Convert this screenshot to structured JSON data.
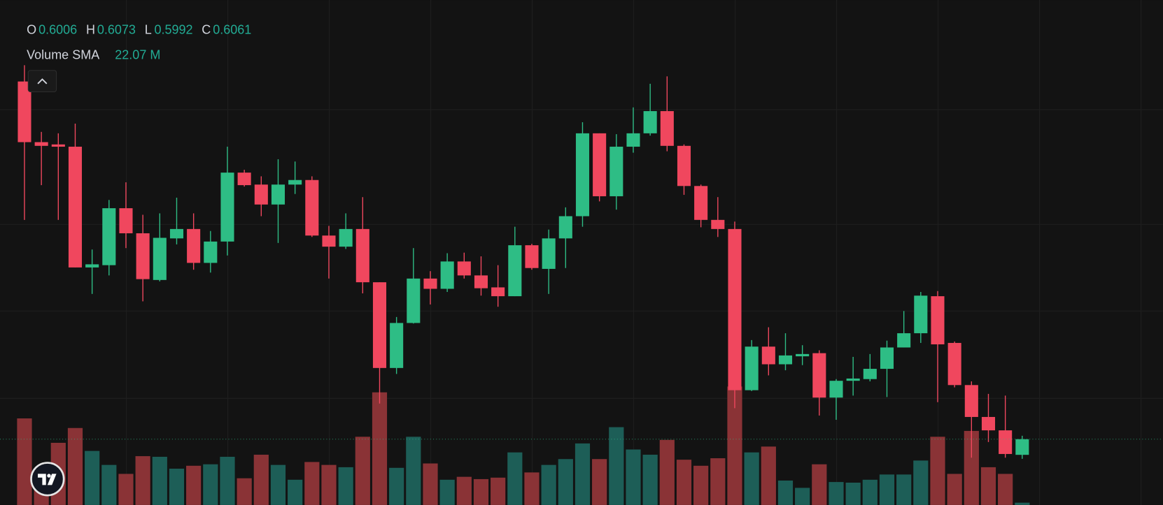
{
  "chart_data": {
    "type": "candlestick",
    "legend": {
      "labels": [
        "O",
        "H",
        "L",
        "C"
      ]
    },
    "volume_sma": {
      "name": "Volume SMA",
      "value": 22.07,
      "label": "22.07 M"
    },
    "up_color": "#2ebd85",
    "down_color": "#f0475e",
    "volume_up_color": "#1d5e57",
    "volume_down_color": "#8a3336",
    "grid": true,
    "ylim": [
      0.583,
      0.7603
    ],
    "volume_lim": [
      0,
      242.1
    ],
    "open": [
      0.7317,
      0.7104,
      0.7096,
      0.7088,
      0.6664,
      0.6672,
      0.6872,
      0.6784,
      0.662,
      0.6766,
      0.6799,
      0.668,
      0.6755,
      0.6997,
      0.6955,
      0.6885,
      0.6955,
      0.6971,
      0.6776,
      0.6737,
      0.6799,
      0.6612,
      0.6311,
      0.6469,
      0.6625,
      0.6589,
      0.6685,
      0.6636,
      0.6594,
      0.6563,
      0.6742,
      0.6659,
      0.6766,
      0.6844,
      0.7135,
      0.6914,
      0.7088,
      0.7135,
      0.7213,
      0.7091,
      0.695,
      0.6831,
      0.6799,
      0.6233,
      0.6386,
      0.6324,
      0.6352,
      0.6363,
      0.6207,
      0.6266,
      0.6272,
      0.6308,
      0.6383,
      0.6433,
      0.6563,
      0.6399,
      0.6251,
      0.6139,
      0.6092,
      0.6006
    ],
    "high": [
      0.7374,
      0.714,
      0.7135,
      0.7169,
      0.6727,
      0.6901,
      0.6963,
      0.6849,
      0.6854,
      0.6909,
      0.6854,
      0.6792,
      0.7088,
      0.7007,
      0.6984,
      0.7044,
      0.7036,
      0.6984,
      0.681,
      0.6854,
      0.6911,
      0.6612,
      0.649,
      0.6732,
      0.6651,
      0.6714,
      0.6716,
      0.6703,
      0.6672,
      0.6807,
      0.6747,
      0.6797,
      0.6875,
      0.7174,
      0.7135,
      0.7132,
      0.7226,
      0.7309,
      0.7335,
      0.7096,
      0.6955,
      0.6911,
      0.6825,
      0.6409,
      0.6454,
      0.6433,
      0.6391,
      0.6373,
      0.6272,
      0.635,
      0.636,
      0.6407,
      0.6511,
      0.6578,
      0.6581,
      0.6404,
      0.6264,
      0.622,
      0.6214,
      0.6073
    ],
    "low": [
      0.6831,
      0.6953,
      0.6831,
      0.6664,
      0.6571,
      0.6636,
      0.6732,
      0.6545,
      0.6615,
      0.6745,
      0.6656,
      0.6646,
      0.6706,
      0.6948,
      0.6844,
      0.675,
      0.6922,
      0.6771,
      0.6625,
      0.6729,
      0.6573,
      0.6186,
      0.629,
      0.6467,
      0.6534,
      0.6578,
      0.6625,
      0.6565,
      0.6526,
      0.6563,
      0.6656,
      0.6571,
      0.6662,
      0.6807,
      0.6896,
      0.6867,
      0.7067,
      0.7127,
      0.7072,
      0.6919,
      0.6805,
      0.6771,
      0.617,
      0.623,
      0.6285,
      0.6303,
      0.6321,
      0.6144,
      0.6129,
      0.6214,
      0.6264,
      0.6209,
      0.6383,
      0.6399,
      0.6191,
      0.6243,
      0.5996,
      0.6051,
      0.5996,
      0.5992
    ],
    "close": [
      0.7104,
      0.7091,
      0.7088,
      0.6664,
      0.6675,
      0.6872,
      0.6784,
      0.6623,
      0.6768,
      0.6799,
      0.668,
      0.6755,
      0.6997,
      0.6953,
      0.6885,
      0.6955,
      0.6971,
      0.6776,
      0.6737,
      0.6799,
      0.6612,
      0.6311,
      0.6469,
      0.6625,
      0.6589,
      0.6685,
      0.6636,
      0.6591,
      0.6563,
      0.6742,
      0.6662,
      0.6766,
      0.6844,
      0.7135,
      0.6914,
      0.7088,
      0.7135,
      0.7213,
      0.7091,
      0.695,
      0.6831,
      0.6799,
      0.6233,
      0.6386,
      0.6324,
      0.6355,
      0.636,
      0.6207,
      0.6266,
      0.6274,
      0.6308,
      0.6383,
      0.6433,
      0.6565,
      0.6394,
      0.6251,
      0.6139,
      0.6092,
      0.6009,
      0.6061
    ],
    "volume": [
      41.5,
      14.9,
      29.8,
      36.9,
      25.9,
      19.2,
      14.9,
      23.4,
      23.1,
      17.4,
      18.8,
      19.5,
      23.1,
      12.8,
      24.1,
      19.2,
      12.1,
      20.6,
      19.2,
      18.1,
      32.7,
      54.0,
      17.8,
      32.7,
      19.9,
      12.1,
      13.5,
      12.4,
      13.1,
      25.2,
      15.6,
      19.2,
      22.0,
      29.5,
      22.0,
      37.3,
      26.6,
      24.1,
      31.2,
      21.7,
      18.8,
      22.4,
      56.8,
      25.2,
      28.0,
      11.7,
      8.2,
      19.5,
      11.0,
      10.7,
      12.1,
      14.6,
      14.6,
      21.3,
      32.7,
      14.9,
      35.5,
      18.1,
      14.9,
      1.1
    ]
  }
}
